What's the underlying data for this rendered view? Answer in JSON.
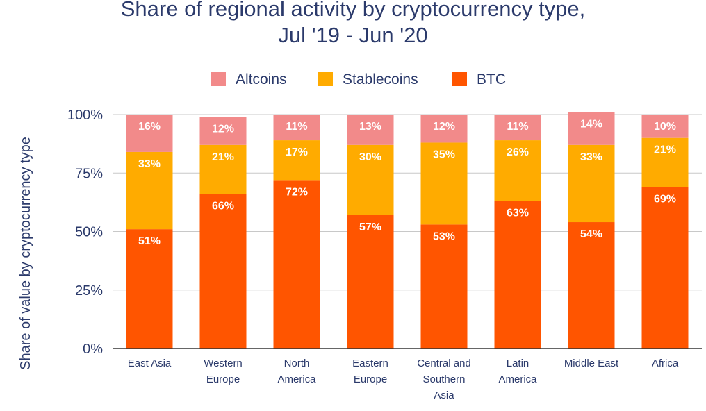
{
  "chart_data": {
    "type": "bar",
    "stacked": true,
    "title": [
      "Share of regional activity by cryptocurrency type,",
      "Jul '19 - Jun '20"
    ],
    "xlabel": "",
    "ylabel": "Share of value by cryptocurrency type",
    "ylim": [
      0,
      100
    ],
    "yticks": [
      "0%",
      "25%",
      "50%",
      "75%",
      "100%"
    ],
    "grid": true,
    "legend_position": "top",
    "categories": [
      [
        "East Asia"
      ],
      [
        "Western",
        "Europe"
      ],
      [
        "North",
        "America"
      ],
      [
        "Eastern",
        "Europe"
      ],
      [
        "Central and",
        "Southern",
        "Asia"
      ],
      [
        "Latin",
        "America"
      ],
      [
        "Middle East"
      ],
      [
        "Africa"
      ]
    ],
    "series": [
      {
        "name": "BTC",
        "color": "#ff5500",
        "values": [
          51,
          66,
          72,
          57,
          53,
          63,
          54,
          69
        ],
        "labels": [
          "51%",
          "66%",
          "72%",
          "57%",
          "53%",
          "63%",
          "54%",
          "69%"
        ]
      },
      {
        "name": "Stablecoins",
        "color": "#ffab00",
        "values": [
          33,
          21,
          17,
          30,
          35,
          26,
          33,
          21
        ],
        "labels": [
          "33%",
          "21%",
          "17%",
          "30%",
          "35%",
          "26%",
          "33%",
          "21%"
        ]
      },
      {
        "name": "Altcoins",
        "color": "#f28a8a",
        "values": [
          16,
          12,
          11,
          13,
          12,
          11,
          14,
          10
        ],
        "labels": [
          "16%",
          "12%",
          "11%",
          "13%",
          "12%",
          "11%",
          "14%",
          "10%"
        ]
      }
    ],
    "legend_order": [
      "Altcoins",
      "Stablecoins",
      "BTC"
    ]
  }
}
